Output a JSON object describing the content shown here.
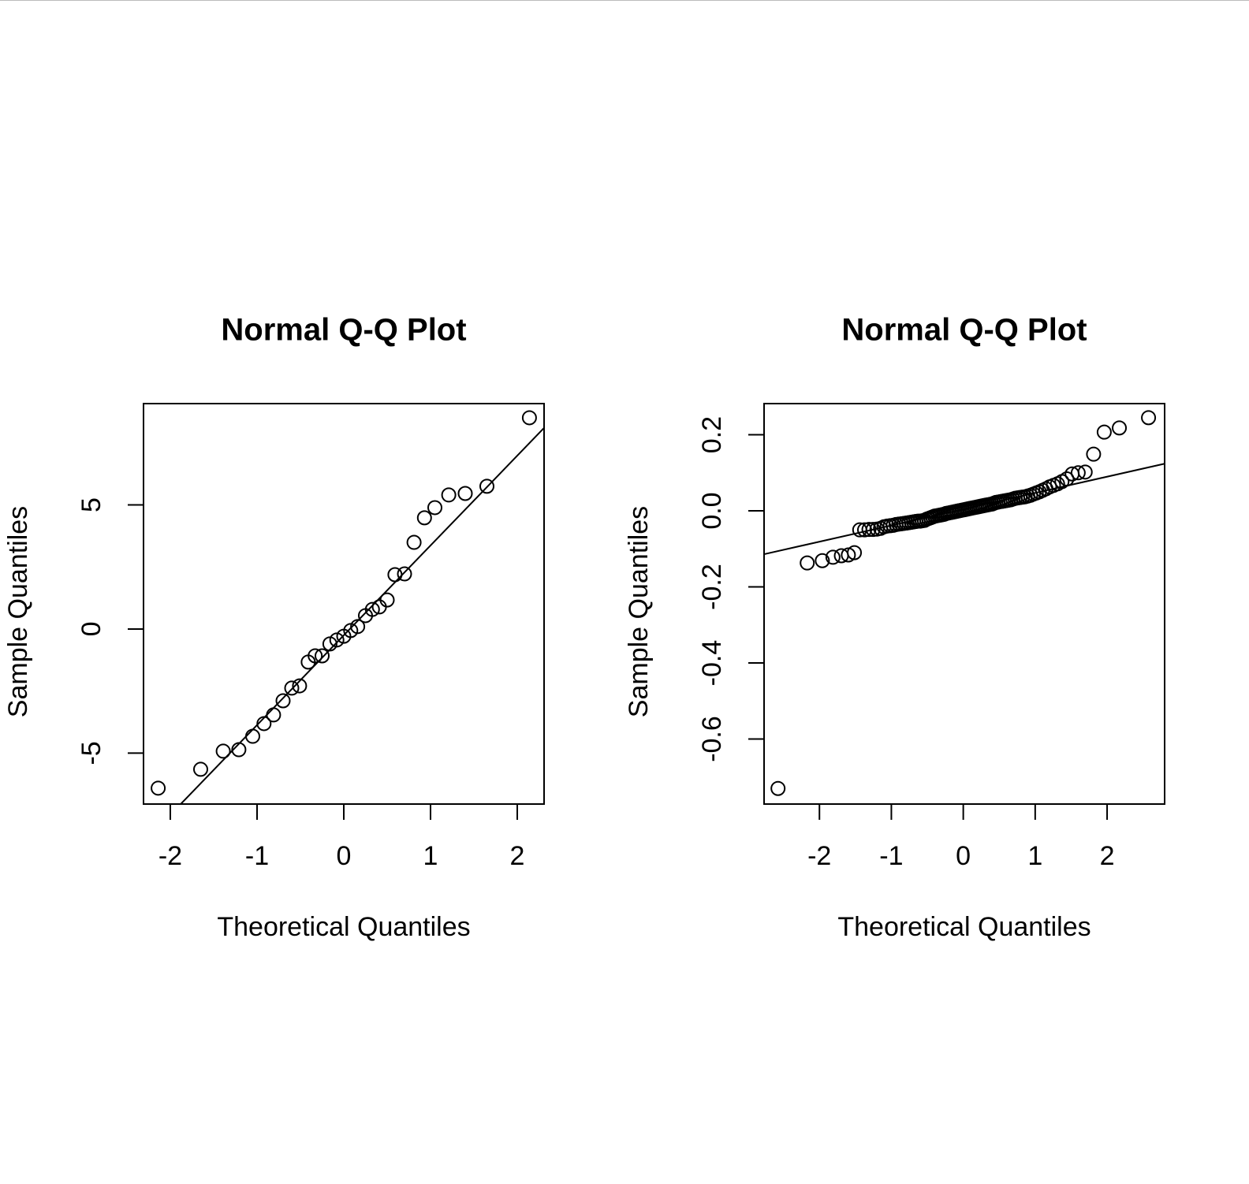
{
  "chart_data": [
    {
      "type": "scatter",
      "title": "Normal Q-Q Plot",
      "x_label": "Theoretical Quantiles",
      "y_label": "Sample Quantiles",
      "color": "#000000",
      "x": [
        -2.14,
        -1.65,
        -1.39,
        -1.21,
        -1.05,
        -0.92,
        -0.81,
        -0.7,
        -0.6,
        -0.51,
        -0.41,
        -0.33,
        -0.25,
        -0.16,
        -0.08,
        0,
        0.08,
        0.16,
        0.25,
        0.33,
        0.41,
        0.5,
        0.59,
        0.7,
        0.81,
        0.93,
        1.05,
        1.21,
        1.4,
        1.65,
        2.14
      ],
      "y": [
        -6.41,
        -5.65,
        -4.92,
        -4.86,
        -4.32,
        -3.81,
        -3.46,
        -2.89,
        -2.38,
        -2.29,
        -1.33,
        -1.08,
        -1.08,
        -0.6,
        -0.44,
        -0.29,
        -0.06,
        0.1,
        0.54,
        0.79,
        0.89,
        1.17,
        2.19,
        2.22,
        3.49,
        4.48,
        4.89,
        5.4,
        5.46,
        5.75,
        8.51
      ],
      "reference_line": {
        "x": [
          -1.88,
          2.309
        ],
        "y": [
          -7.05,
          8.1
        ]
      },
      "xlim": [
        -2.309,
        2.309
      ],
      "ylim": [
        -7.05,
        9.08
      ],
      "xticks": [
        -2,
        -1,
        0,
        1,
        2
      ],
      "yticks": [
        -5,
        0,
        5
      ]
    },
    {
      "type": "scatter",
      "title": "Normal Q-Q Plot",
      "x_label": "Theoretical Quantiles",
      "y_label": "Sample Quantiles",
      "color": "#000000",
      "x": [
        -2.576,
        -2.17,
        -1.96,
        -1.812,
        -1.695,
        -1.598,
        -1.514,
        -1.44,
        -1.372,
        -1.311,
        -1.254,
        -1.2,
        -1.15,
        -1.103,
        -1.058,
        -1.015,
        -0.974,
        -0.935,
        -0.896,
        -0.86,
        -0.824,
        -0.789,
        -0.755,
        -0.722,
        -0.69,
        -0.659,
        -0.628,
        -0.598,
        -0.568,
        -0.539,
        -0.51,
        -0.482,
        -0.454,
        -0.426,
        -0.399,
        -0.372,
        -0.345,
        -0.319,
        -0.292,
        -0.266,
        -0.24,
        -0.215,
        -0.189,
        -0.164,
        -0.138,
        -0.113,
        -0.088,
        -0.063,
        -0.038,
        -0.013,
        0.013,
        0.038,
        0.063,
        0.088,
        0.113,
        0.138,
        0.164,
        0.189,
        0.215,
        0.24,
        0.266,
        0.292,
        0.319,
        0.345,
        0.372,
        0.399,
        0.426,
        0.454,
        0.482,
        0.51,
        0.539,
        0.568,
        0.598,
        0.628,
        0.659,
        0.69,
        0.722,
        0.755,
        0.789,
        0.824,
        0.86,
        0.896,
        0.935,
        0.974,
        1.015,
        1.058,
        1.103,
        1.15,
        1.2,
        1.254,
        1.311,
        1.372,
        1.44,
        1.514,
        1.598,
        1.695,
        1.812,
        1.96,
        2.17,
        2.576
      ],
      "y": [
        -0.73,
        -0.137,
        -0.131,
        -0.122,
        -0.118,
        -0.116,
        -0.11,
        -0.05,
        -0.05,
        -0.049,
        -0.049,
        -0.048,
        -0.046,
        -0.042,
        -0.04,
        -0.039,
        -0.038,
        -0.036,
        -0.035,
        -0.034,
        -0.033,
        -0.032,
        -0.031,
        -0.03,
        -0.029,
        -0.028,
        -0.027,
        -0.027,
        -0.026,
        -0.025,
        -0.022,
        -0.02,
        -0.018,
        -0.016,
        -0.014,
        -0.013,
        -0.012,
        -0.011,
        -0.01,
        -0.009,
        -0.007,
        -0.006,
        -0.005,
        -0.004,
        -0.003,
        -0.002,
        -0.001,
        0.0,
        0.001,
        0.002,
        0.003,
        0.004,
        0.005,
        0.006,
        0.007,
        0.008,
        0.009,
        0.01,
        0.011,
        0.012,
        0.013,
        0.014,
        0.015,
        0.016,
        0.017,
        0.018,
        0.02,
        0.022,
        0.023,
        0.024,
        0.025,
        0.026,
        0.027,
        0.028,
        0.029,
        0.031,
        0.033,
        0.034,
        0.035,
        0.036,
        0.037,
        0.039,
        0.041,
        0.044,
        0.047,
        0.05,
        0.054,
        0.058,
        0.063,
        0.067,
        0.071,
        0.077,
        0.084,
        0.097,
        0.1,
        0.102,
        0.149,
        0.207,
        0.218,
        0.245
      ],
      "reference_line": {
        "x": [
          -2.77,
          2.8
        ],
        "y": [
          -0.114,
          0.124
        ]
      },
      "xlim": [
        -2.77,
        2.8
      ],
      "ylim": [
        -0.771,
        0.282
      ],
      "xticks": [
        -2,
        -1,
        0,
        1,
        2
      ],
      "yticks": [
        -0.6,
        -0.4,
        -0.2,
        {
          "value": 0,
          "label": "0.0"
        },
        0.2
      ]
    }
  ]
}
